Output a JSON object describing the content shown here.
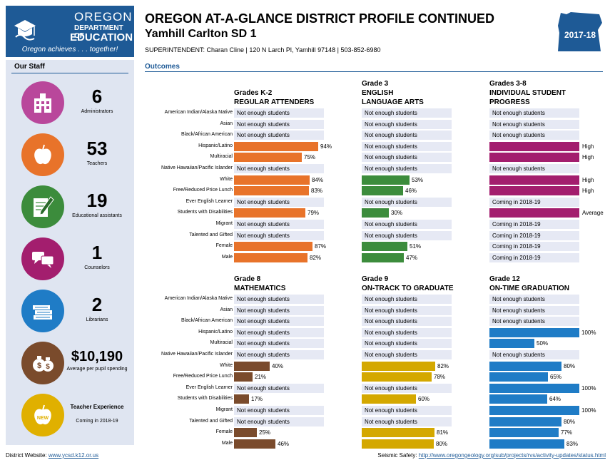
{
  "header": {
    "logo": {
      "line1": "OREGON",
      "line2": "DEPARTMENT OF",
      "line3": "EDUCATION",
      "tagline": "Oregon achieves . . . together!"
    },
    "title": "OREGON AT-A-GLANCE DISTRICT PROFILE CONTINUED",
    "district": "Yamhill Carlton SD 1",
    "superintendent_line": "SUPERINTENDENT: Charan Cline  | 120 N Larch Pl, Yamhill 97148 | 503-852-6980",
    "year": "2017-18"
  },
  "staff": {
    "title": "Our Staff",
    "items": [
      {
        "value": "6",
        "label": "Administrators",
        "icon": "school-building-icon",
        "color": "#b9479b"
      },
      {
        "value": "53",
        "label": "Teachers",
        "icon": "apple-icon",
        "color": "#e8732a"
      },
      {
        "value": "19",
        "label": "Educational assistants",
        "icon": "pencil-paper-icon",
        "color": "#3c8c3c"
      },
      {
        "value": "1",
        "label": "Counselors",
        "icon": "chat-bubbles-icon",
        "color": "#a31e6e"
      },
      {
        "value": "2",
        "label": "Librarians",
        "icon": "books-icon",
        "color": "#1f7cc6"
      },
      {
        "value": "$10,190",
        "label": "Average per pupil spending",
        "icon": "money-bags-icon",
        "color": "#7a4b2c"
      },
      {
        "value": "Teacher Experience",
        "label": "Coming in 2018-19",
        "icon": "new-apple-icon",
        "color": "#e0b000"
      }
    ]
  },
  "outcomes_title": "Outcomes",
  "categories": [
    "American Indian/Alaska Native",
    "Asian",
    "Black/African American",
    "Hispanic/Latino",
    "Multiracial",
    "Native Hawaiian/Pacific Islander",
    "White",
    "Free/Reduced Price Lunch",
    "Ever English Learner",
    "Students with Disabilities",
    "Migrant",
    "Talented and Gifted",
    "Female",
    "Male"
  ],
  "not_enough": "Not enough students",
  "coming": "Coming in 2018-19",
  "chart_data": [
    {
      "type": "bar",
      "title": "Grades K-2 REGULAR ATTENDERS",
      "heading": [
        "Grades K-2",
        "REGULAR ATTENDERS"
      ],
      "color": "#e8732a",
      "values": [
        null,
        null,
        null,
        94,
        75,
        null,
        84,
        83,
        null,
        79,
        null,
        null,
        87,
        82
      ]
    },
    {
      "type": "bar",
      "title": "Grade 3 ENGLISH LANGUAGE ARTS",
      "heading": [
        "Grade 3",
        "ENGLISH",
        "LANGUAGE ARTS"
      ],
      "color": "#3c8c3c",
      "values": [
        null,
        null,
        null,
        null,
        null,
        null,
        53,
        46,
        null,
        30,
        null,
        null,
        51,
        47
      ]
    },
    {
      "type": "table",
      "title": "Grades 3-8 INDIVIDUAL STUDENT PROGRESS",
      "heading": [
        "Grades 3-8",
        "INDIVIDUAL STUDENT",
        "PROGRESS"
      ],
      "color": "#a31e6e",
      "values": [
        "ne",
        "ne",
        "ne",
        "High",
        "High",
        "ne",
        "High",
        "High",
        "coming",
        "Average",
        "coming",
        "coming",
        "coming",
        "coming"
      ]
    },
    {
      "type": "bar",
      "title": "Grade 8 MATHEMATICS",
      "heading": [
        "Grade 8",
        "MATHEMATICS"
      ],
      "color": "#7a4b2c",
      "values": [
        null,
        null,
        null,
        null,
        null,
        null,
        40,
        21,
        null,
        17,
        null,
        null,
        25,
        46
      ]
    },
    {
      "type": "bar",
      "title": "Grade 9 ON-TRACK TO GRADUATE",
      "heading": [
        "Grade 9",
        "ON-TRACK TO GRADUATE"
      ],
      "color": "#d4a800",
      "values": [
        null,
        null,
        null,
        null,
        null,
        null,
        82,
        78,
        null,
        60,
        null,
        null,
        81,
        80
      ]
    },
    {
      "type": "bar",
      "title": "Grade 12 ON-TIME GRADUATION",
      "heading": [
        "Grade 12",
        "ON-TIME GRADUATION"
      ],
      "color": "#1f7cc6",
      "values": [
        null,
        null,
        null,
        100,
        50,
        null,
        80,
        65,
        100,
        64,
        100,
        80,
        77,
        83
      ]
    }
  ],
  "footer": {
    "left_label": "District Website:",
    "left_url": "www.ycsd.k12.or.us",
    "right_label": "Seismic Safety:",
    "right_url": "http://www.oregongeology.org/sub/projects/rvs/activity-updates/status.html"
  }
}
